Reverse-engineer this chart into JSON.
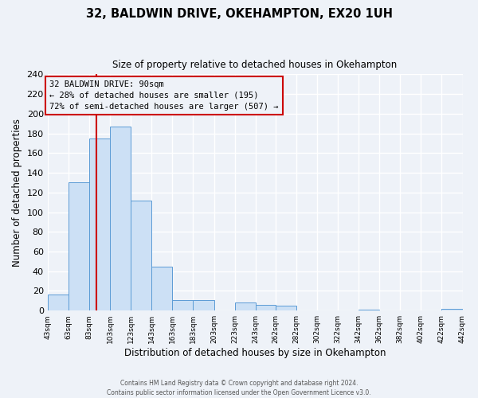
{
  "title": "32, BALDWIN DRIVE, OKEHAMPTON, EX20 1UH",
  "subtitle": "Size of property relative to detached houses in Okehampton",
  "xlabel": "Distribution of detached houses by size in Okehampton",
  "ylabel": "Number of detached properties",
  "bin_edges": [
    43,
    63,
    83,
    103,
    123,
    143,
    163,
    183,
    203,
    223,
    243,
    262,
    282,
    302,
    322,
    342,
    362,
    382,
    402,
    422,
    442
  ],
  "bin_labels": [
    "43sqm",
    "63sqm",
    "83sqm",
    "103sqm",
    "123sqm",
    "143sqm",
    "163sqm",
    "183sqm",
    "203sqm",
    "223sqm",
    "243sqm",
    "262sqm",
    "282sqm",
    "302sqm",
    "322sqm",
    "342sqm",
    "362sqm",
    "382sqm",
    "402sqm",
    "422sqm",
    "442sqm"
  ],
  "counts": [
    16,
    130,
    175,
    187,
    112,
    45,
    11,
    11,
    0,
    8,
    6,
    5,
    0,
    0,
    0,
    1,
    0,
    0,
    0,
    2
  ],
  "bar_facecolor": "#cce0f5",
  "bar_edgecolor": "#5b9bd5",
  "ylim": [
    0,
    240
  ],
  "yticks": [
    0,
    20,
    40,
    60,
    80,
    100,
    120,
    140,
    160,
    180,
    200,
    220,
    240
  ],
  "vline_x": 90,
  "vline_color": "#cc0000",
  "annotation_title": "32 BALDWIN DRIVE: 90sqm",
  "annotation_line1": "← 28% of detached houses are smaller (195)",
  "annotation_line2": "72% of semi-detached houses are larger (507) →",
  "annotation_box_color": "#cc0000",
  "background_color": "#eef2f8",
  "grid_color": "#ffffff",
  "footer1": "Contains HM Land Registry data © Crown copyright and database right 2024.",
  "footer2": "Contains public sector information licensed under the Open Government Licence v3.0."
}
